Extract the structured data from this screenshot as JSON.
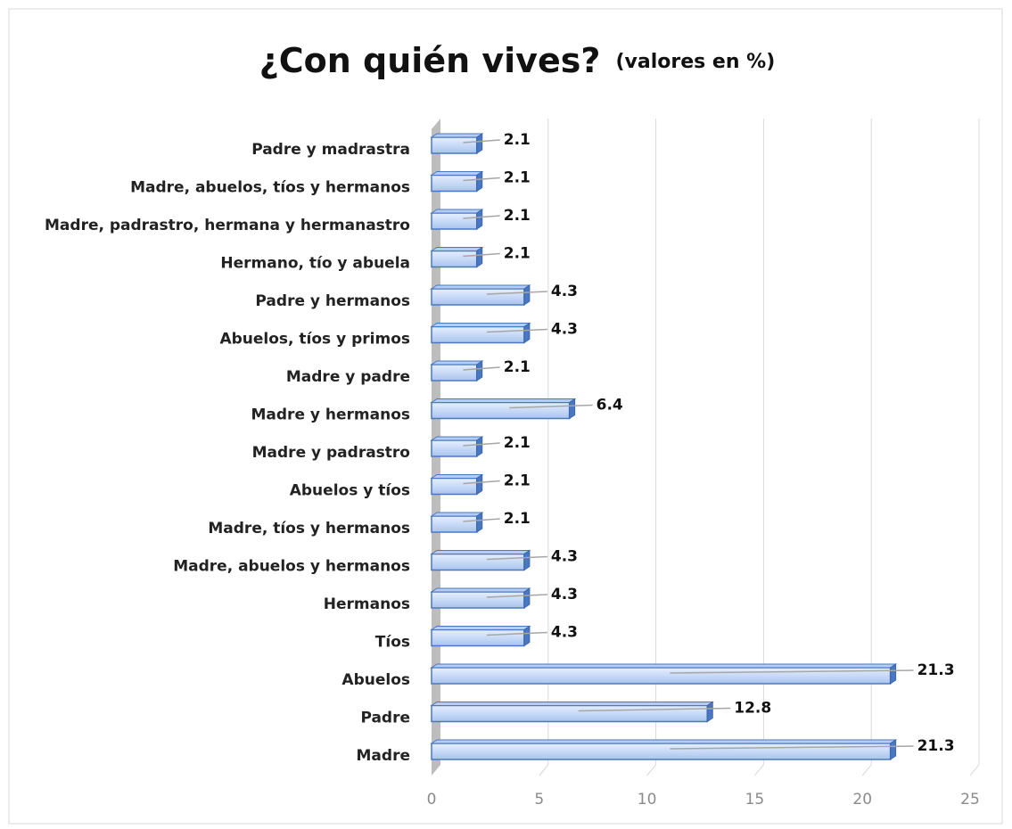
{
  "chart_data": {
    "type": "bar",
    "orientation": "horizontal",
    "title": "¿Con quién vives?",
    "subtitle": "(valores en %)",
    "categories": [
      "Madre",
      "Padre",
      "Abuelos",
      "Tíos",
      "Hermanos",
      "Madre, abuelos y hermanos",
      "Madre, tíos y hermanos",
      "Abuelos y tíos",
      "Madre y padrastro",
      "Madre y hermanos",
      "Madre y padre",
      "Abuelos, tíos y primos",
      "Padre y hermanos",
      "Hermano, tío y abuela",
      "Madre, padrastro, hermana y hermanastro",
      "Madre, abuelos, tíos y hermanos",
      "Padre y madrastra"
    ],
    "values": [
      21.3,
      12.8,
      21.3,
      4.3,
      4.3,
      4.3,
      2.1,
      2.1,
      2.1,
      6.4,
      2.1,
      4.3,
      4.3,
      2.1,
      2.1,
      2.1,
      2.1
    ],
    "color": "#b4cdf5",
    "xlim": [
      0,
      25
    ],
    "xticks": [
      0,
      5,
      10,
      15,
      20,
      25
    ],
    "grid": true
  }
}
